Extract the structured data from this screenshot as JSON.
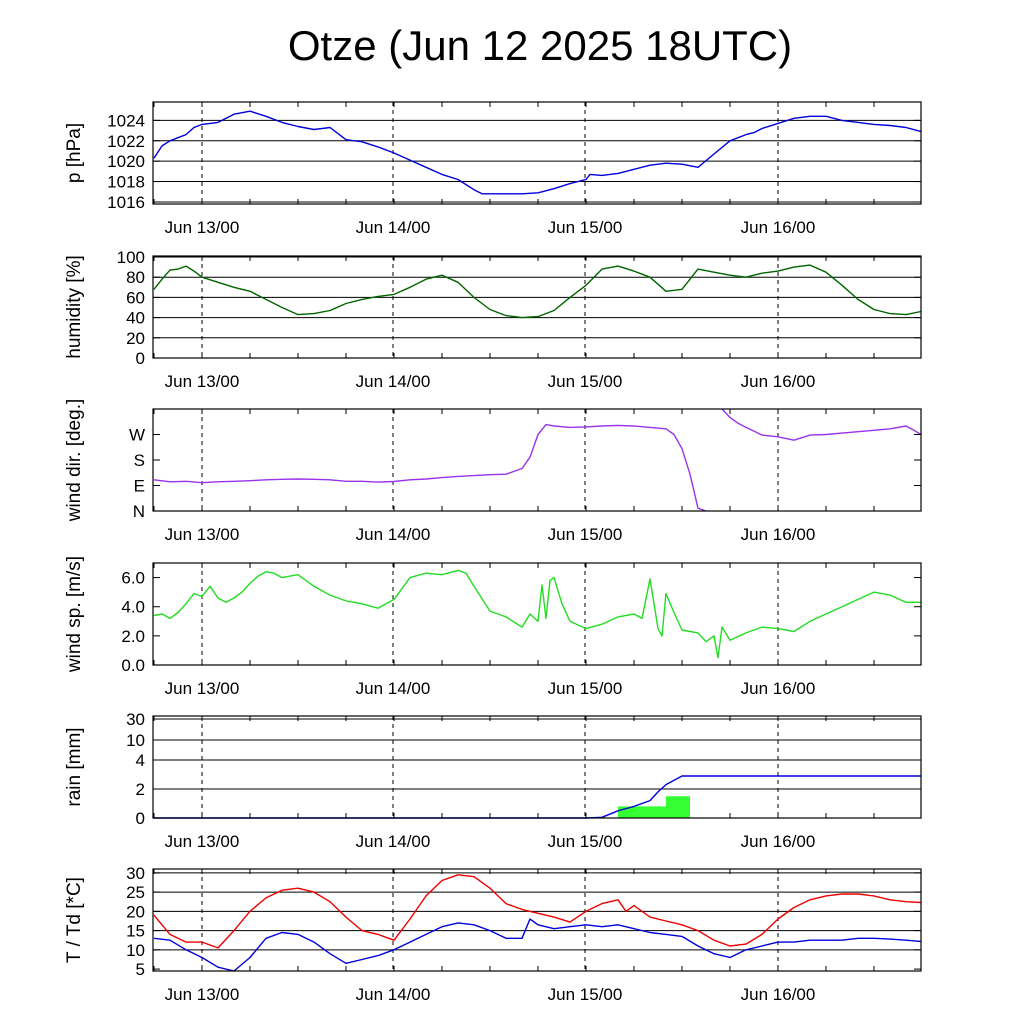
{
  "title": "Otze (Jun 12 2025 18UTC)",
  "x_tick_labels": [
    "Jun 13/00",
    "Jun 14/00",
    "Jun 15/00",
    "Jun 16/00"
  ],
  "chart_data": [
    {
      "type": "line",
      "ylabel": "p [hPa]",
      "ylim": [
        1015.8,
        1025.8
      ],
      "yticks": [
        1016,
        1018,
        1020,
        1022,
        1024
      ],
      "ytick_labels": [
        "1016",
        "1018",
        "1020",
        "1022",
        "1024"
      ],
      "grid_values": [
        1016,
        1018,
        1020,
        1022,
        1024
      ],
      "x_unit": "hours since Jun 12 18UTC",
      "xlim": [
        0,
        96
      ],
      "series": [
        {
          "color": "#0000dd",
          "x": [
            0,
            1,
            2,
            3,
            4,
            5,
            6,
            8,
            10,
            12,
            14,
            16,
            18,
            20,
            22,
            24,
            26,
            28,
            30,
            32,
            34,
            36,
            38,
            40,
            41,
            42,
            44,
            46,
            48,
            50,
            52,
            54,
            54.5,
            56,
            58,
            60,
            62,
            64,
            66,
            68,
            70,
            72,
            74,
            75,
            76,
            78,
            80,
            82,
            84,
            86,
            88,
            90,
            92,
            94,
            96
          ],
          "values": [
            1020.3,
            1021.5,
            1022.0,
            1022.3,
            1022.6,
            1023.3,
            1023.6,
            1023.8,
            1024.6,
            1024.9,
            1024.4,
            1023.8,
            1023.4,
            1023.1,
            1023.3,
            1022.1,
            1021.9,
            1021.4,
            1020.8,
            1020.1,
            1019.4,
            1018.7,
            1018.2,
            1017.2,
            1016.8,
            1016.8,
            1016.8,
            1016.8,
            1016.9,
            1017.3,
            1017.8,
            1018.2,
            1018.7,
            1018.6,
            1018.8,
            1019.2,
            1019.6,
            1019.8,
            1019.7,
            1019.4,
            1020.7,
            1022.0,
            1022.6,
            1022.8,
            1023.2,
            1023.7,
            1024.2,
            1024.4,
            1024.4,
            1024.0,
            1023.8,
            1023.6,
            1023.5,
            1023.3,
            1022.9
          ]
        }
      ]
    },
    {
      "type": "line",
      "ylabel": "humidity [%]",
      "ylim": [
        0,
        101
      ],
      "yticks": [
        0,
        20,
        40,
        60,
        80,
        100
      ],
      "ytick_labels": [
        "0",
        "20",
        "40",
        "60",
        "80",
        "100"
      ],
      "grid_values": [
        20,
        40,
        60,
        80,
        100
      ],
      "xlim": [
        0,
        96
      ],
      "series": [
        {
          "color": "#006400",
          "x": [
            0,
            1,
            2,
            3,
            4,
            5,
            6,
            8,
            10,
            12,
            14,
            16,
            18,
            20,
            22,
            24,
            26,
            28,
            30,
            32,
            34,
            36,
            38,
            40,
            42,
            44,
            46,
            48,
            50,
            52,
            54,
            56,
            58,
            60,
            62,
            64,
            66,
            68,
            70,
            72,
            74,
            76,
            78,
            80,
            82,
            84,
            86,
            88,
            90,
            92,
            94,
            96
          ],
          "values": [
            68,
            78,
            87,
            88,
            91,
            86,
            80,
            75,
            70,
            66,
            58,
            50,
            43,
            44,
            47,
            54,
            58,
            61,
            63,
            70,
            78,
            82,
            75,
            60,
            48,
            42,
            40,
            41,
            47,
            60,
            72,
            88,
            91,
            86,
            80,
            66,
            68,
            88,
            85,
            82,
            80,
            84,
            86,
            90,
            92,
            85,
            72,
            58,
            48,
            44,
            43,
            46
          ]
        }
      ]
    },
    {
      "type": "line",
      "ylabel": "wind dir. [deg.]",
      "ylim": [
        0,
        360
      ],
      "yticks": [
        0,
        90,
        180,
        270
      ],
      "ytick_labels": [
        "N",
        "E",
        "S",
        "W"
      ],
      "grid_values": [],
      "xlim": [
        0,
        96
      ],
      "series": [
        {
          "color": "#9933ee",
          "x": [
            0,
            2,
            4,
            6,
            8,
            10,
            12,
            14,
            16,
            18,
            20,
            22,
            24,
            26,
            28,
            30,
            32,
            34,
            36,
            38,
            40,
            42,
            44,
            46,
            47,
            48,
            49,
            50,
            52,
            54,
            56,
            58,
            60,
            62,
            64,
            65,
            66,
            67,
            68,
            69
          ],
          "values": [
            110,
            103,
            105,
            100,
            103,
            105,
            107,
            110,
            112,
            113,
            112,
            110,
            105,
            105,
            102,
            104,
            110,
            113,
            118,
            122,
            125,
            128,
            130,
            150,
            190,
            270,
            305,
            300,
            295,
            297,
            300,
            302,
            300,
            295,
            290,
            270,
            220,
            130,
            10,
            0
          ]
        },
        {
          "color": "#9933ee",
          "x": [
            71,
            72,
            73,
            74,
            75,
            76,
            78,
            80,
            82,
            84,
            86,
            88,
            90,
            92,
            94,
            95,
            96
          ],
          "values": [
            360,
            330,
            310,
            295,
            282,
            268,
            262,
            250,
            268,
            270,
            275,
            280,
            285,
            290,
            300,
            285,
            270
          ]
        }
      ]
    },
    {
      "type": "line",
      "ylabel": "wind sp. [m/s]",
      "ylim": [
        0,
        7
      ],
      "yticks": [
        0,
        2,
        4,
        6
      ],
      "ytick_labels": [
        "0.0",
        "2.0",
        "4.0",
        "6.0"
      ],
      "grid_values": [],
      "xlim": [
        0,
        96
      ],
      "series": [
        {
          "color": "#22dd22",
          "x": [
            0,
            1,
            2,
            3,
            4,
            5,
            6,
            7,
            8,
            9,
            10,
            11,
            12,
            13,
            14,
            15,
            16,
            17,
            18,
            20,
            22,
            24,
            26,
            28,
            30,
            32,
            34,
            36,
            38,
            39,
            40,
            42,
            44,
            46,
            47,
            48,
            48.5,
            49,
            49.5,
            50,
            51,
            52,
            54,
            56,
            58,
            60,
            61,
            62,
            63,
            63.5,
            64,
            65,
            66,
            67,
            68,
            69,
            70,
            70.5,
            71,
            72,
            74,
            76,
            78,
            80,
            82,
            84,
            86,
            88,
            90,
            92,
            94,
            96
          ],
          "values": [
            3.4,
            3.5,
            3.2,
            3.6,
            4.2,
            4.9,
            4.7,
            5.4,
            4.6,
            4.3,
            4.6,
            5.0,
            5.6,
            6.1,
            6.4,
            6.3,
            6.0,
            6.1,
            6.2,
            5.4,
            4.8,
            4.4,
            4.2,
            3.9,
            4.5,
            6.0,
            6.3,
            6.2,
            6.5,
            6.3,
            5.4,
            3.7,
            3.3,
            2.6,
            3.5,
            3.0,
            5.5,
            3.2,
            5.8,
            6.0,
            4.2,
            3.0,
            2.5,
            2.8,
            3.3,
            3.5,
            3.2,
            5.9,
            2.5,
            2.0,
            4.9,
            3.6,
            2.4,
            2.3,
            2.2,
            1.6,
            2.0,
            0.5,
            2.6,
            1.7,
            2.2,
            2.6,
            2.5,
            2.3,
            3.0,
            3.5,
            4.0,
            4.5,
            5.0,
            4.8,
            4.3,
            4.3
          ]
        }
      ]
    },
    {
      "type": "bar+line",
      "ylabel": "rain [mm]",
      "scale": "piecewise",
      "ytick_labels": [
        "0",
        "2",
        "4",
        "10",
        "30"
      ],
      "grid_values": [
        2,
        4,
        10,
        30
      ],
      "xlim": [
        0,
        96
      ],
      "bars": {
        "color": "#33ff33",
        "x_start": [
          58,
          64
        ],
        "x_end": [
          64,
          67
        ],
        "values": [
          0.8,
          1.5
        ]
      },
      "series": [
        {
          "color": "#0000dd",
          "x": [
            0,
            54,
            56,
            58,
            60,
            62,
            63,
            64,
            66,
            96
          ],
          "values": [
            0,
            0,
            0.05,
            0.5,
            0.8,
            1.2,
            1.8,
            2.3,
            2.9,
            2.9
          ]
        }
      ]
    },
    {
      "type": "line",
      "ylabel": "T / Td [*C]",
      "ylim": [
        4.5,
        31
      ],
      "yticks": [
        5,
        10,
        15,
        20,
        25,
        30
      ],
      "ytick_labels": [
        "5",
        "10",
        "15",
        "20",
        "25",
        "30"
      ],
      "grid_values": [
        10,
        15,
        20,
        25,
        30
      ],
      "xlim": [
        0,
        96
      ],
      "series": [
        {
          "color": "#ee0000",
          "x": [
            0,
            2,
            4,
            6,
            8,
            10,
            12,
            14,
            16,
            18,
            20,
            22,
            24,
            26,
            28,
            30,
            32,
            34,
            36,
            38,
            40,
            42,
            44,
            46,
            48,
            50,
            52,
            54,
            56,
            58,
            59,
            60,
            62,
            64,
            66,
            68,
            70,
            72,
            74,
            76,
            78,
            80,
            82,
            84,
            86,
            88,
            90,
            92,
            94,
            96
          ],
          "values": [
            19,
            14,
            12,
            12,
            10.5,
            15,
            20,
            23.5,
            25.5,
            26,
            25,
            22.5,
            18.5,
            15,
            14,
            12.5,
            18,
            24,
            28,
            29.5,
            29,
            26,
            22,
            20.5,
            19.5,
            18.5,
            17.2,
            20,
            22,
            23,
            20,
            21.5,
            18.5,
            17.5,
            16.5,
            15,
            12.5,
            11,
            11.5,
            14,
            18,
            21,
            23,
            24,
            24.5,
            24.5,
            24,
            23,
            22.5,
            22.3
          ]
        },
        {
          "color": "#0000dd",
          "x": [
            0,
            2,
            4,
            6,
            8,
            10,
            12,
            14,
            16,
            18,
            20,
            22,
            24,
            26,
            28,
            30,
            32,
            34,
            36,
            38,
            40,
            42,
            44,
            46,
            47,
            48,
            50,
            52,
            54,
            56,
            58,
            60,
            62,
            64,
            66,
            68,
            70,
            72,
            74,
            76,
            78,
            80,
            82,
            84,
            86,
            88,
            90,
            92,
            94,
            96
          ],
          "values": [
            13,
            12.5,
            10,
            8,
            5.5,
            4.5,
            8,
            13,
            14.5,
            14,
            12,
            9,
            6.5,
            7.5,
            8.5,
            10,
            12,
            14,
            16,
            17,
            16.5,
            15,
            13,
            13,
            18,
            16.5,
            15.5,
            16,
            16.5,
            16,
            16.5,
            15.5,
            14.5,
            14,
            13.5,
            11,
            9,
            8,
            10,
            11,
            12,
            12,
            12.5,
            12.5,
            12.5,
            13,
            13,
            12.8,
            12.5,
            12.2
          ]
        }
      ]
    }
  ]
}
